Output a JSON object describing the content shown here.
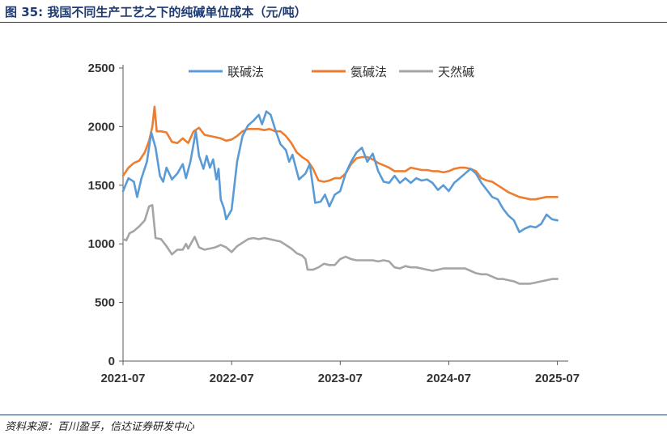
{
  "title": "图 35:  我国不同生产工艺之下的纯碱单位成本（元/吨）",
  "source": "资料来源：百川盈孚，信达证券研发中心",
  "chart_data": {
    "type": "line",
    "title": "我国不同生产工艺之下的纯碱单位成本（元/吨）",
    "xlabel": "",
    "ylabel": "",
    "xlim": [
      2021.5,
      2025.6
    ],
    "ylim": [
      0,
      2500
    ],
    "yticks": [
      0,
      500,
      1000,
      1500,
      2000,
      2500
    ],
    "xticks": [
      {
        "label": "2021-07",
        "value": 2021.5
      },
      {
        "label": "2022-07",
        "value": 2022.5
      },
      {
        "label": "2023-07",
        "value": 2023.5
      },
      {
        "label": "2024-07",
        "value": 2024.5
      },
      {
        "label": "2025-07",
        "value": 2025.5
      }
    ],
    "legend_position": "top",
    "series": [
      {
        "name": "联碱法",
        "color": "#5b9bd5",
        "points": [
          [
            2021.5,
            1450
          ],
          [
            2021.55,
            1560
          ],
          [
            2021.6,
            1530
          ],
          [
            2021.63,
            1400
          ],
          [
            2021.67,
            1560
          ],
          [
            2021.72,
            1700
          ],
          [
            2021.76,
            1950
          ],
          [
            2021.8,
            1820
          ],
          [
            2021.84,
            1580
          ],
          [
            2021.87,
            1530
          ],
          [
            2021.9,
            1650
          ],
          [
            2021.95,
            1550
          ],
          [
            2022.0,
            1600
          ],
          [
            2022.05,
            1680
          ],
          [
            2022.08,
            1560
          ],
          [
            2022.12,
            1700
          ],
          [
            2022.17,
            1960
          ],
          [
            2022.2,
            1750
          ],
          [
            2022.24,
            1640
          ],
          [
            2022.27,
            1750
          ],
          [
            2022.3,
            1650
          ],
          [
            2022.33,
            1720
          ],
          [
            2022.36,
            1550
          ],
          [
            2022.38,
            1640
          ],
          [
            2022.4,
            1380
          ],
          [
            2022.43,
            1300
          ],
          [
            2022.45,
            1210
          ],
          [
            2022.5,
            1290
          ],
          [
            2022.55,
            1700
          ],
          [
            2022.6,
            1920
          ],
          [
            2022.65,
            2010
          ],
          [
            2022.7,
            2050
          ],
          [
            2022.75,
            2100
          ],
          [
            2022.78,
            2020
          ],
          [
            2022.82,
            2130
          ],
          [
            2022.86,
            2100
          ],
          [
            2022.9,
            1980
          ],
          [
            2022.95,
            1850
          ],
          [
            2023.0,
            1800
          ],
          [
            2023.03,
            1700
          ],
          [
            2023.06,
            1760
          ],
          [
            2023.12,
            1550
          ],
          [
            2023.18,
            1600
          ],
          [
            2023.22,
            1680
          ],
          [
            2023.27,
            1350
          ],
          [
            2023.32,
            1360
          ],
          [
            2023.36,
            1420
          ],
          [
            2023.4,
            1320
          ],
          [
            2023.45,
            1420
          ],
          [
            2023.5,
            1450
          ],
          [
            2023.55,
            1600
          ],
          [
            2023.6,
            1700
          ],
          [
            2023.65,
            1780
          ],
          [
            2023.7,
            1820
          ],
          [
            2023.75,
            1700
          ],
          [
            2023.8,
            1770
          ],
          [
            2023.85,
            1620
          ],
          [
            2023.9,
            1530
          ],
          [
            2023.95,
            1520
          ],
          [
            2024.0,
            1580
          ],
          [
            2024.05,
            1520
          ],
          [
            2024.1,
            1560
          ],
          [
            2024.15,
            1520
          ],
          [
            2024.2,
            1560
          ],
          [
            2024.25,
            1540
          ],
          [
            2024.3,
            1550
          ],
          [
            2024.35,
            1520
          ],
          [
            2024.4,
            1460
          ],
          [
            2024.45,
            1500
          ],
          [
            2024.5,
            1450
          ],
          [
            2024.55,
            1520
          ],
          [
            2024.6,
            1560
          ],
          [
            2024.65,
            1600
          ],
          [
            2024.7,
            1640
          ],
          [
            2024.75,
            1600
          ],
          [
            2024.8,
            1520
          ],
          [
            2024.85,
            1460
          ],
          [
            2024.9,
            1400
          ],
          [
            2024.95,
            1380
          ],
          [
            2025.0,
            1300
          ],
          [
            2025.05,
            1240
          ],
          [
            2025.1,
            1200
          ],
          [
            2025.15,
            1100
          ],
          [
            2025.2,
            1130
          ],
          [
            2025.25,
            1150
          ],
          [
            2025.3,
            1140
          ],
          [
            2025.35,
            1170
          ],
          [
            2025.4,
            1250
          ],
          [
            2025.45,
            1210
          ],
          [
            2025.5,
            1200
          ]
        ]
      },
      {
        "name": "氨碱法",
        "color": "#ed7d31",
        "points": [
          [
            2021.5,
            1580
          ],
          [
            2021.55,
            1650
          ],
          [
            2021.6,
            1690
          ],
          [
            2021.65,
            1710
          ],
          [
            2021.7,
            1780
          ],
          [
            2021.74,
            1880
          ],
          [
            2021.77,
            2000
          ],
          [
            2021.79,
            2170
          ],
          [
            2021.81,
            1960
          ],
          [
            2021.85,
            1960
          ],
          [
            2021.9,
            1950
          ],
          [
            2021.95,
            1870
          ],
          [
            2022.0,
            1860
          ],
          [
            2022.05,
            1900
          ],
          [
            2022.1,
            1860
          ],
          [
            2022.15,
            1960
          ],
          [
            2022.2,
            1990
          ],
          [
            2022.25,
            1930
          ],
          [
            2022.3,
            1920
          ],
          [
            2022.35,
            1910
          ],
          [
            2022.4,
            1900
          ],
          [
            2022.45,
            1880
          ],
          [
            2022.5,
            1890
          ],
          [
            2022.55,
            1920
          ],
          [
            2022.6,
            1960
          ],
          [
            2022.65,
            1980
          ],
          [
            2022.7,
            1980
          ],
          [
            2022.75,
            1980
          ],
          [
            2022.8,
            1970
          ],
          [
            2022.85,
            1980
          ],
          [
            2022.9,
            1960
          ],
          [
            2022.95,
            1960
          ],
          [
            2023.0,
            1920
          ],
          [
            2023.05,
            1860
          ],
          [
            2023.1,
            1780
          ],
          [
            2023.15,
            1740
          ],
          [
            2023.2,
            1710
          ],
          [
            2023.25,
            1640
          ],
          [
            2023.3,
            1540
          ],
          [
            2023.35,
            1530
          ],
          [
            2023.4,
            1540
          ],
          [
            2023.45,
            1560
          ],
          [
            2023.5,
            1560
          ],
          [
            2023.55,
            1600
          ],
          [
            2023.6,
            1680
          ],
          [
            2023.65,
            1730
          ],
          [
            2023.7,
            1740
          ],
          [
            2023.75,
            1740
          ],
          [
            2023.8,
            1720
          ],
          [
            2023.85,
            1690
          ],
          [
            2023.9,
            1670
          ],
          [
            2023.95,
            1650
          ],
          [
            2024.0,
            1620
          ],
          [
            2024.05,
            1620
          ],
          [
            2024.1,
            1620
          ],
          [
            2024.15,
            1650
          ],
          [
            2024.2,
            1640
          ],
          [
            2024.25,
            1630
          ],
          [
            2024.3,
            1630
          ],
          [
            2024.35,
            1620
          ],
          [
            2024.4,
            1620
          ],
          [
            2024.45,
            1610
          ],
          [
            2024.5,
            1620
          ],
          [
            2024.55,
            1640
          ],
          [
            2024.6,
            1650
          ],
          [
            2024.65,
            1650
          ],
          [
            2024.7,
            1640
          ],
          [
            2024.75,
            1620
          ],
          [
            2024.8,
            1560
          ],
          [
            2024.85,
            1540
          ],
          [
            2024.9,
            1530
          ],
          [
            2024.95,
            1500
          ],
          [
            2025.0,
            1470
          ],
          [
            2025.05,
            1440
          ],
          [
            2025.1,
            1420
          ],
          [
            2025.15,
            1400
          ],
          [
            2025.2,
            1390
          ],
          [
            2025.25,
            1380
          ],
          [
            2025.3,
            1380
          ],
          [
            2025.35,
            1390
          ],
          [
            2025.4,
            1400
          ],
          [
            2025.45,
            1400
          ],
          [
            2025.5,
            1400
          ]
        ]
      },
      {
        "name": "天然碱",
        "color": "#a5a5a5",
        "points": [
          [
            2021.5,
            1040
          ],
          [
            2021.53,
            1030
          ],
          [
            2021.56,
            1090
          ],
          [
            2021.6,
            1110
          ],
          [
            2021.65,
            1150
          ],
          [
            2021.7,
            1200
          ],
          [
            2021.74,
            1320
          ],
          [
            2021.77,
            1330
          ],
          [
            2021.8,
            1050
          ],
          [
            2021.85,
            1040
          ],
          [
            2021.9,
            980
          ],
          [
            2021.95,
            910
          ],
          [
            2022.0,
            950
          ],
          [
            2022.05,
            950
          ],
          [
            2022.08,
            1000
          ],
          [
            2022.1,
            960
          ],
          [
            2022.13,
            1010
          ],
          [
            2022.16,
            1060
          ],
          [
            2022.2,
            970
          ],
          [
            2022.25,
            950
          ],
          [
            2022.3,
            960
          ],
          [
            2022.35,
            970
          ],
          [
            2022.4,
            990
          ],
          [
            2022.45,
            970
          ],
          [
            2022.5,
            930
          ],
          [
            2022.55,
            980
          ],
          [
            2022.6,
            1010
          ],
          [
            2022.65,
            1040
          ],
          [
            2022.7,
            1050
          ],
          [
            2022.75,
            1040
          ],
          [
            2022.8,
            1050
          ],
          [
            2022.85,
            1040
          ],
          [
            2022.9,
            1030
          ],
          [
            2022.95,
            1020
          ],
          [
            2023.0,
            990
          ],
          [
            2023.05,
            960
          ],
          [
            2023.1,
            920
          ],
          [
            2023.15,
            900
          ],
          [
            2023.18,
            870
          ],
          [
            2023.2,
            780
          ],
          [
            2023.25,
            780
          ],
          [
            2023.3,
            800
          ],
          [
            2023.35,
            830
          ],
          [
            2023.4,
            820
          ],
          [
            2023.45,
            820
          ],
          [
            2023.5,
            870
          ],
          [
            2023.55,
            890
          ],
          [
            2023.6,
            870
          ],
          [
            2023.65,
            860
          ],
          [
            2023.7,
            860
          ],
          [
            2023.75,
            860
          ],
          [
            2023.8,
            860
          ],
          [
            2023.85,
            850
          ],
          [
            2023.9,
            860
          ],
          [
            2023.95,
            850
          ],
          [
            2024.0,
            800
          ],
          [
            2024.05,
            790
          ],
          [
            2024.1,
            810
          ],
          [
            2024.15,
            800
          ],
          [
            2024.2,
            800
          ],
          [
            2024.25,
            790
          ],
          [
            2024.3,
            780
          ],
          [
            2024.35,
            770
          ],
          [
            2024.4,
            780
          ],
          [
            2024.45,
            790
          ],
          [
            2024.5,
            790
          ],
          [
            2024.55,
            790
          ],
          [
            2024.6,
            790
          ],
          [
            2024.65,
            790
          ],
          [
            2024.7,
            770
          ],
          [
            2024.75,
            750
          ],
          [
            2024.8,
            740
          ],
          [
            2024.85,
            740
          ],
          [
            2024.9,
            720
          ],
          [
            2024.95,
            700
          ],
          [
            2025.0,
            700
          ],
          [
            2025.05,
            690
          ],
          [
            2025.1,
            680
          ],
          [
            2025.15,
            660
          ],
          [
            2025.2,
            660
          ],
          [
            2025.25,
            660
          ],
          [
            2025.3,
            670
          ],
          [
            2025.35,
            680
          ],
          [
            2025.4,
            690
          ],
          [
            2025.45,
            700
          ],
          [
            2025.5,
            700
          ]
        ]
      }
    ]
  }
}
